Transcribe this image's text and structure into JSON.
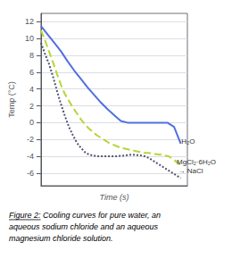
{
  "chart_data": {
    "type": "line",
    "xlabel": "Time (s)",
    "ylabel": "Temp (°C)",
    "xlim": [
      0,
      11
    ],
    "xticks": [],
    "ylim": [
      -7.5,
      13
    ],
    "yticks": [
      -6,
      -4,
      -2,
      0,
      2,
      4,
      6,
      8,
      10,
      12
    ],
    "tick_labels": "y",
    "grid": true,
    "series": [
      {
        "line_style": "solid",
        "x": [
          0,
          0.5,
          1.0,
          1.5,
          2.0,
          2.5,
          3.0,
          3.5,
          4.0,
          4.5,
          5.0,
          5.5,
          6.0,
          6.5,
          7.0,
          7.5,
          8.0,
          8.5,
          9.0,
          9.5,
          10.0,
          10.5
        ],
        "values": [
          11.5,
          10.5,
          9.5,
          8.5,
          7.3,
          6.2,
          5.2,
          4.2,
          3.3,
          2.4,
          1.6,
          0.9,
          0.2,
          0.0,
          0.0,
          0.0,
          0.0,
          0.0,
          0.0,
          0.0,
          -0.5,
          -2.5
        ]
      },
      {
        "line_style": "dashed",
        "x": [
          0,
          0.3,
          0.6,
          0.9,
          1.2,
          1.5,
          1.8,
          2.1,
          2.4,
          2.7,
          3.0,
          3.3,
          3.6,
          3.9,
          4.2,
          4.5,
          4.8,
          5.1,
          5.4,
          5.7,
          6.0,
          6.3,
          6.6,
          6.9,
          7.2,
          7.5,
          7.8,
          8.1,
          8.4,
          8.7,
          9.0,
          9.3,
          9.6,
          9.9,
          10.2,
          10.5
        ],
        "values": [
          11.0,
          9.8,
          8.5,
          7.2,
          5.8,
          4.5,
          3.4,
          2.6,
          1.8,
          1.1,
          0.4,
          -0.2,
          -0.7,
          -1.1,
          -1.5,
          -1.8,
          -2.1,
          -2.4,
          -2.6,
          -2.8,
          -3.0,
          -3.1,
          -3.2,
          -3.3,
          -3.4,
          -3.5,
          -3.6,
          -3.6,
          -3.7,
          -3.75,
          -3.8,
          -3.9,
          -4.0,
          -4.3,
          -4.7,
          -5.1
        ]
      },
      {
        "line_style": "dotted",
        "x": [
          0,
          0.3,
          0.6,
          0.9,
          1.2,
          1.5,
          1.8,
          2.1,
          2.4,
          2.7,
          3.0,
          3.3,
          3.6,
          3.9,
          4.2,
          4.5,
          4.8,
          5.1,
          5.4,
          5.7,
          6.0,
          6.3,
          6.6,
          6.9,
          7.2,
          7.5,
          7.8,
          8.1,
          8.4,
          8.7,
          9.0,
          9.3,
          9.6,
          9.9,
          10.2,
          10.5
        ],
        "values": [
          9.5,
          8.2,
          7.0,
          5.5,
          3.8,
          2.2,
          0.8,
          -0.5,
          -1.5,
          -2.4,
          -3.0,
          -3.5,
          -3.8,
          -3.9,
          -4.0,
          -4.0,
          -4.0,
          -4.0,
          -4.0,
          -4.0,
          -3.95,
          -3.9,
          -3.85,
          -3.8,
          -3.85,
          -3.9,
          -4.0,
          -4.2,
          -4.5,
          -4.8,
          -5.1,
          -5.4,
          -5.7,
          -6.0,
          -6.3,
          -6.6
        ]
      }
    ],
    "annotations": [
      {
        "text": "H₂O",
        "x": 10.55,
        "y": -2.2
      },
      {
        "text": "MgCl₂·6H₂O",
        "x": 10.2,
        "y": -4.7
      },
      {
        "text": "→ NaCl",
        "x": 10.3,
        "y": -5.3
      }
    ],
    "caption_title": "Figure 2:",
    "caption_lines": [
      " Cooling curves for pure water, an",
      "aqueous sodium chloride and an aqueous",
      "magnesium chloride solution."
    ]
  }
}
